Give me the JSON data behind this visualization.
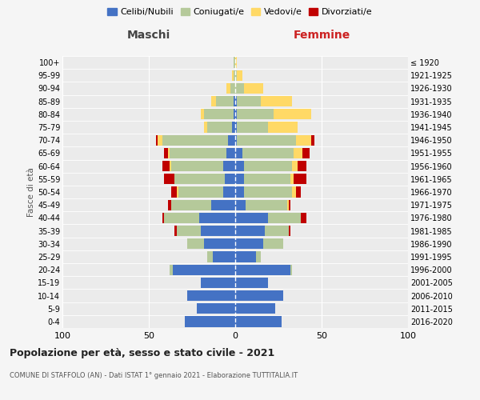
{
  "age_groups": [
    "0-4",
    "5-9",
    "10-14",
    "15-19",
    "20-24",
    "25-29",
    "30-34",
    "35-39",
    "40-44",
    "45-49",
    "50-54",
    "55-59",
    "60-64",
    "65-69",
    "70-74",
    "75-79",
    "80-84",
    "85-89",
    "90-94",
    "95-99",
    "100+"
  ],
  "birth_years": [
    "2016-2020",
    "2011-2015",
    "2006-2010",
    "2001-2005",
    "1996-2000",
    "1991-1995",
    "1986-1990",
    "1981-1985",
    "1976-1980",
    "1971-1975",
    "1966-1970",
    "1961-1965",
    "1956-1960",
    "1951-1955",
    "1946-1950",
    "1941-1945",
    "1936-1940",
    "1931-1935",
    "1926-1930",
    "1921-1925",
    "≤ 1920"
  ],
  "males": {
    "celibi": [
      29,
      22,
      28,
      20,
      36,
      13,
      18,
      20,
      21,
      14,
      7,
      6,
      7,
      5,
      4,
      2,
      1,
      1,
      0,
      0,
      0
    ],
    "coniugati": [
      0,
      0,
      0,
      0,
      2,
      3,
      10,
      14,
      20,
      23,
      26,
      29,
      30,
      33,
      38,
      14,
      17,
      10,
      3,
      1,
      1
    ],
    "vedovi": [
      0,
      0,
      0,
      0,
      0,
      0,
      0,
      0,
      0,
      0,
      1,
      0,
      1,
      1,
      3,
      2,
      2,
      3,
      2,
      1,
      0
    ],
    "divorziati": [
      0,
      0,
      0,
      0,
      0,
      0,
      0,
      1,
      1,
      2,
      3,
      6,
      4,
      2,
      1,
      0,
      0,
      0,
      0,
      0,
      0
    ]
  },
  "females": {
    "nubili": [
      27,
      23,
      28,
      19,
      32,
      12,
      16,
      17,
      19,
      6,
      5,
      5,
      5,
      4,
      1,
      1,
      1,
      1,
      0,
      0,
      0
    ],
    "coniugate": [
      0,
      0,
      0,
      0,
      1,
      3,
      12,
      14,
      19,
      24,
      28,
      27,
      28,
      30,
      34,
      18,
      21,
      14,
      5,
      1,
      0
    ],
    "vedove": [
      0,
      0,
      0,
      0,
      0,
      0,
      0,
      0,
      0,
      1,
      2,
      2,
      3,
      5,
      9,
      17,
      22,
      18,
      11,
      3,
      1
    ],
    "divorziate": [
      0,
      0,
      0,
      0,
      0,
      0,
      0,
      1,
      3,
      1,
      3,
      7,
      5,
      4,
      2,
      0,
      0,
      0,
      0,
      0,
      0
    ]
  },
  "colors": {
    "celibi_nubili": "#4472c4",
    "coniugati": "#b5c99a",
    "vedovi": "#ffd966",
    "divorziati": "#c00000"
  },
  "xlim": 100,
  "background_color": "#f5f5f5",
  "plot_bg": "#ebebeb",
  "title": "Popolazione per età, sesso e stato civile - 2021",
  "subtitle": "COMUNE DI STAFFOLO (AN) - Dati ISTAT 1° gennaio 2021 - Elaborazione TUTTITALIA.IT",
  "ylabel_left": "Fasce di età",
  "xlabel_left": "Maschi",
  "xlabel_right": "Femmine"
}
